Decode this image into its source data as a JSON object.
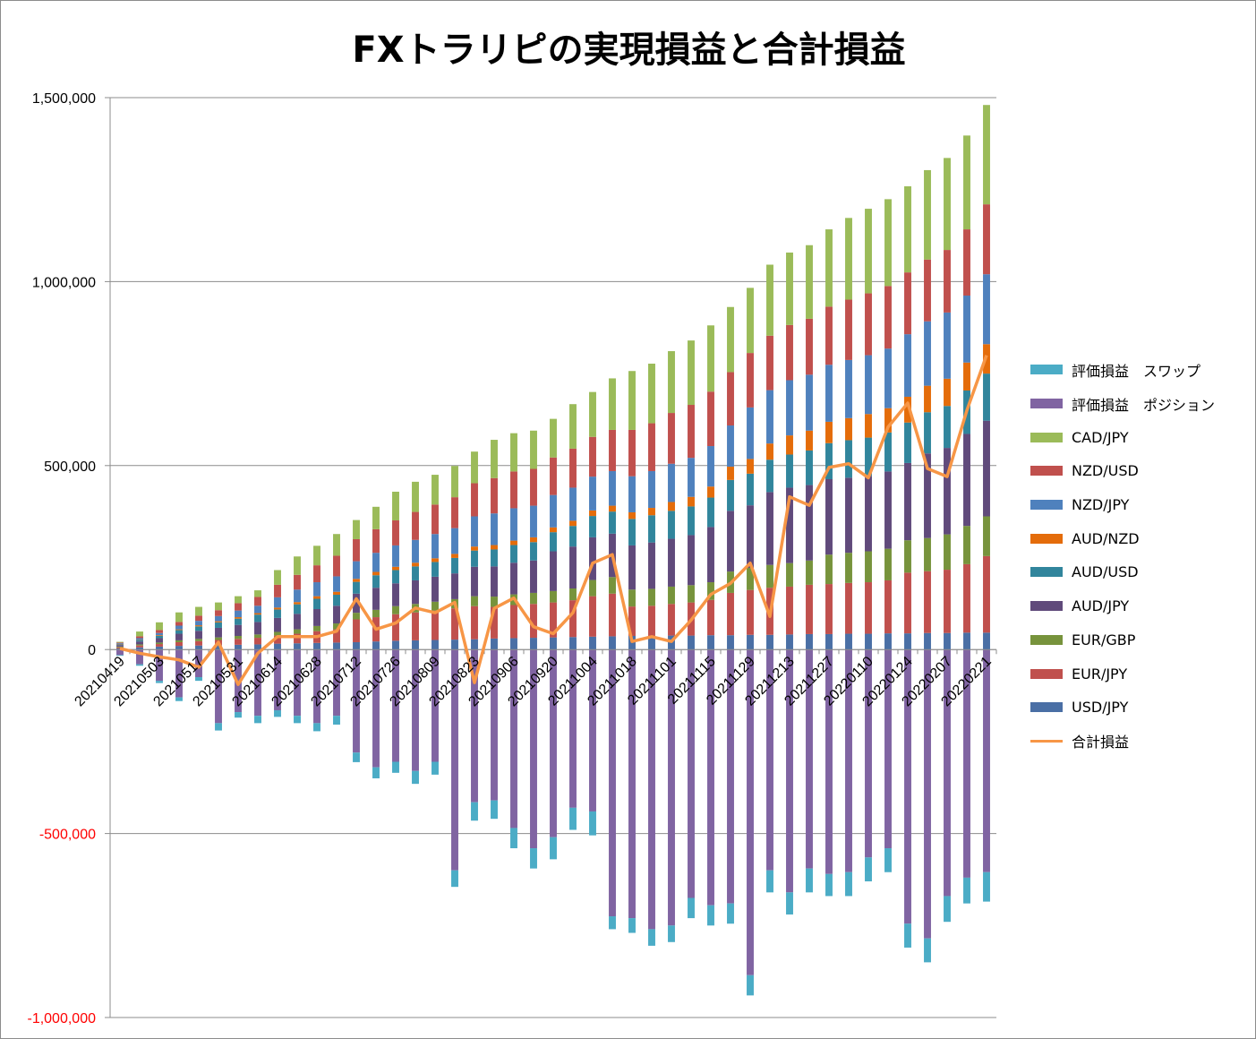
{
  "chart_data": {
    "type": "bar",
    "title": "FXトラリピの実現損益と合計損益",
    "ylim": [
      -1000000,
      1500000
    ],
    "yticks": [
      "1,500,000",
      "1,000,000",
      "500,000",
      "0",
      "-500,000",
      "-1,000,000"
    ],
    "ytick_values": [
      1500000,
      1000000,
      500000,
      0,
      -500000,
      -1000000
    ],
    "negative_tick_color": "#FF0000",
    "grid": true,
    "legend": "right",
    "x": [
      "20210419",
      "20210426",
      "20210503",
      "20210510",
      "20210517",
      "20210524",
      "20210531",
      "20210607",
      "20210614",
      "20210621",
      "20210628",
      "20210705",
      "20210712",
      "20210719",
      "20210726",
      "20210802",
      "20210809",
      "20210816",
      "20210823",
      "20210830",
      "20210906",
      "20210913",
      "20210920",
      "20210927",
      "20211004",
      "20211011",
      "20211018",
      "20211025",
      "20211101",
      "20211108",
      "20211115",
      "20211122",
      "20211129",
      "20211206",
      "20211213",
      "20211220",
      "20211227",
      "20220103",
      "20220110",
      "20220117",
      "20220124",
      "20220131",
      "20220207",
      "20220214",
      "20220221"
    ],
    "x_labels_shown": [
      "20210419",
      "20210503",
      "20210517",
      "20210531",
      "20210614",
      "20210628",
      "20210712",
      "20210726",
      "20210809",
      "20210823",
      "20210906",
      "20210920",
      "20211004",
      "20211018",
      "20211101",
      "20211115",
      "20211129",
      "20211213",
      "20211227",
      "20220110",
      "20220124",
      "20220207",
      "20220221"
    ],
    "series": [
      {
        "name": "USD/JPY",
        "color": "#4A6FA5",
        "stack": "pos",
        "values": [
          3000,
          6000,
          8000,
          10000,
          11000,
          12000,
          13000,
          14000,
          16000,
          17000,
          18000,
          19000,
          20000,
          22000,
          24000,
          25000,
          26000,
          27000,
          28000,
          30000,
          31000,
          32000,
          33000,
          34000,
          35000,
          36000,
          37000,
          37000,
          38000,
          38000,
          39000,
          39000,
          40000,
          40000,
          41000,
          42000,
          42000,
          43000,
          43000,
          44000,
          44000,
          45000,
          45000,
          46000,
          46000
        ]
      },
      {
        "name": "EUR/JPY",
        "color": "#C0504D",
        "stack": "pos",
        "values": [
          3000,
          5000,
          7000,
          10000,
          12000,
          14000,
          16000,
          18000,
          22000,
          26000,
          32000,
          36000,
          62000,
          66000,
          72000,
          76000,
          80000,
          85000,
          90000,
          86000,
          90000,
          92000,
          95000,
          100000,
          110000,
          116000,
          80000,
          82000,
          86000,
          90000,
          96000,
          115000,
          122000,
          128000,
          130000,
          134000,
          136000,
          138000,
          140000,
          144000,
          165000,
          168000,
          172000,
          186000,
          208000
        ]
      },
      {
        "name": "EUR/GBP",
        "color": "#77933C",
        "stack": "pos",
        "values": [
          2000,
          3000,
          4000,
          5000,
          6000,
          7000,
          8000,
          9000,
          10000,
          12000,
          14000,
          16000,
          18000,
          20000,
          22000,
          23000,
          24000,
          25000,
          27000,
          28000,
          29000,
          30000,
          31000,
          32000,
          44000,
          45000,
          46000,
          46000,
          47000,
          47000,
          48000,
          58000,
          60000,
          62000,
          64000,
          66000,
          80000,
          82000,
          84000,
          86000,
          88000,
          90000,
          96000,
          104000,
          108000
        ]
      },
      {
        "name": "AUD/JPY",
        "color": "#604A7B",
        "stack": "pos",
        "values": [
          4000,
          8000,
          12000,
          18000,
          22000,
          26000,
          30000,
          34000,
          38000,
          42000,
          46000,
          48000,
          52000,
          60000,
          62000,
          64000,
          68000,
          70000,
          80000,
          82000,
          86000,
          88000,
          108000,
          114000,
          116000,
          118000,
          120000,
          126000,
          130000,
          136000,
          150000,
          165000,
          170000,
          198000,
          205000,
          205000,
          205000,
          204000,
          205000,
          210000,
          210000,
          230000,
          235000,
          250000,
          260000
        ]
      },
      {
        "name": "AUD/USD",
        "color": "#31859C",
        "stack": "pos",
        "values": [
          2000,
          4000,
          6000,
          10000,
          12000,
          15000,
          17000,
          20000,
          23000,
          26000,
          28000,
          30000,
          32000,
          34000,
          36000,
          38000,
          40000,
          42000,
          44000,
          46000,
          48000,
          50000,
          52000,
          56000,
          58000,
          60000,
          72000,
          74000,
          76000,
          78000,
          80000,
          84000,
          86000,
          88000,
          90000,
          94000,
          98000,
          102000,
          104000,
          106000,
          110000,
          112000,
          114000,
          118000,
          128000
        ]
      },
      {
        "name": "AUD/NZD",
        "color": "#E46C0A",
        "stack": "pos",
        "values": [
          1000,
          1000,
          2000,
          2000,
          3000,
          3000,
          4000,
          4000,
          5000,
          6000,
          7000,
          8000,
          8000,
          9000,
          9000,
          10000,
          10000,
          11000,
          11000,
          12000,
          12000,
          13000,
          13000,
          14000,
          15000,
          16000,
          18000,
          20000,
          24000,
          26000,
          30000,
          36000,
          40000,
          44000,
          52000,
          54000,
          58000,
          60000,
          64000,
          66000,
          70000,
          72000,
          74000,
          76000,
          80000
        ]
      },
      {
        "name": "NZD/JPY",
        "color": "#4F81BD",
        "stack": "pos",
        "values": [
          2000,
          4000,
          6000,
          10000,
          12000,
          14000,
          18000,
          20000,
          28000,
          34000,
          38000,
          42000,
          48000,
          52000,
          58000,
          62000,
          66000,
          70000,
          82000,
          86000,
          88000,
          86000,
          88000,
          90000,
          92000,
          94000,
          98000,
          100000,
          104000,
          106000,
          110000,
          112000,
          140000,
          145000,
          150000,
          152000,
          155000,
          158000,
          160000,
          162000,
          170000,
          175000,
          180000,
          182000,
          190000
        ]
      },
      {
        "name": "NZD/USD",
        "color": "#C0504D",
        "stack": "pos",
        "values": [
          2000,
          5000,
          8000,
          10000,
          14000,
          16000,
          20000,
          24000,
          34000,
          40000,
          46000,
          56000,
          60000,
          64000,
          68000,
          76000,
          80000,
          84000,
          90000,
          96000,
          100000,
          100000,
          102000,
          106000,
          108000,
          112000,
          126000,
          130000,
          138000,
          144000,
          148000,
          145000,
          148000,
          148000,
          150000,
          152000,
          158000,
          164000,
          168000,
          170000,
          168000,
          168000,
          170000,
          180000,
          190000
        ]
      },
      {
        "name": "CAD/JPY",
        "color": "#9BBB59",
        "stack": "pos",
        "values": [
          2000,
          13000,
          21000,
          26000,
          24000,
          21000,
          19000,
          18000,
          40000,
          50000,
          53000,
          59000,
          52000,
          61000,
          78000,
          82000,
          81000,
          85000,
          86000,
          104000,
          104000,
          104000,
          105000,
          121000,
          122000,
          140000,
          160000,
          162000,
          168000,
          175000,
          180000,
          177000,
          177000,
          193000,
          197000,
          200000,
          210000,
          222000,
          230000,
          236000,
          234000,
          243000,
          250000,
          255000,
          270000
        ]
      },
      {
        "name": "評価損益　ポジション",
        "color": "#8064A2",
        "stack": "neg",
        "values": [
          -15000,
          -40000,
          -85000,
          -130000,
          -75000,
          -200000,
          -170000,
          -180000,
          -165000,
          -180000,
          -200000,
          -180000,
          -280000,
          -320000,
          -305000,
          -330000,
          -305000,
          -600000,
          -415000,
          -410000,
          -485000,
          -540000,
          -510000,
          -430000,
          -440000,
          -725000,
          -730000,
          -760000,
          -750000,
          -675000,
          -695000,
          -690000,
          -885000,
          -600000,
          -660000,
          -595000,
          -610000,
          -605000,
          -565000,
          -540000,
          -745000,
          -785000,
          -670000,
          -620000,
          -605000
        ]
      },
      {
        "name": "評価損益　スワップ",
        "color": "#4BACC6",
        "stack": "neg",
        "values": [
          -2000,
          -4000,
          -6000,
          -10000,
          -10000,
          -20000,
          -15000,
          -20000,
          -18000,
          -20000,
          -22000,
          -24000,
          -26000,
          -30000,
          -30000,
          -35000,
          -35000,
          -45000,
          -50000,
          -50000,
          -55000,
          -55000,
          -60000,
          -60000,
          -65000,
          -35000,
          -40000,
          -45000,
          -45000,
          -55000,
          -55000,
          -55000,
          -55000,
          -60000,
          -60000,
          -65000,
          -60000,
          -65000,
          -65000,
          -65000,
          -65000,
          -65000,
          -70000,
          -70000,
          -80000
        ]
      },
      {
        "name": "合計損益",
        "color": "#F79646",
        "type": "line",
        "values": [
          3000,
          -10000,
          -20000,
          -28000,
          -48000,
          20000,
          -95000,
          -10000,
          35000,
          35000,
          35000,
          50000,
          138000,
          55000,
          72000,
          113000,
          100000,
          128000,
          -90000,
          112000,
          140000,
          62000,
          43000,
          100000,
          235000,
          258000,
          22000,
          35000,
          22000,
          80000,
          150000,
          180000,
          235000,
          90000,
          415000,
          392000,
          495000,
          505000,
          467000,
          605000,
          670000,
          492000,
          470000,
          650000,
          800000
        ]
      }
    ],
    "legend_order": [
      "評価損益　スワップ",
      "評価損益　ポジション",
      "CAD/JPY",
      "NZD/USD",
      "NZD/JPY",
      "AUD/NZD",
      "AUD/USD",
      "AUD/JPY",
      "EUR/GBP",
      "EUR/JPY",
      "USD/JPY",
      "合計損益"
    ]
  }
}
